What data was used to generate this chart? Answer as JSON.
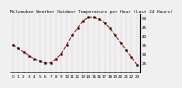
{
  "title": "Milwaukee Weather Outdoor Temperature per Hour (Last 24 Hours)",
  "hours": [
    0,
    1,
    2,
    3,
    4,
    5,
    6,
    7,
    8,
    9,
    10,
    11,
    12,
    13,
    14,
    15,
    16,
    17,
    18,
    19,
    20,
    21,
    22,
    23
  ],
  "temps": [
    35,
    33,
    31,
    29,
    27,
    26,
    25,
    25,
    27,
    30,
    35,
    40,
    44,
    48,
    50,
    50,
    49,
    47,
    44,
    40,
    36,
    32,
    28,
    24
  ],
  "line_color": "#cc0000",
  "marker_color": "#000000",
  "bg_color": "#f0f0f0",
  "grid_color": "#888888",
  "title_color": "#000000",
  "ylim": [
    20,
    52
  ],
  "yticks": [
    25,
    30,
    35,
    40,
    45,
    50
  ],
  "ytick_labels": [
    "25",
    "30",
    "35",
    "40",
    "45",
    "50"
  ],
  "title_fontsize": 3.2,
  "tick_fontsize": 3.0
}
